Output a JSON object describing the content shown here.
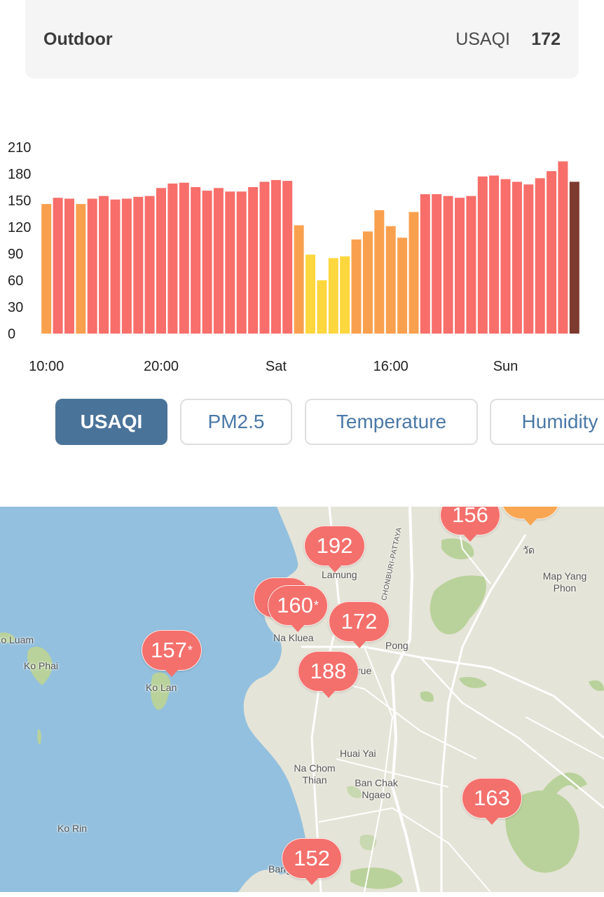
{
  "outdoor": {
    "label": "Outdoor",
    "unit": "USAQI",
    "value": "172"
  },
  "chart_data": {
    "type": "bar",
    "ylim": [
      0,
      210
    ],
    "yticks": [
      0,
      30,
      60,
      90,
      120,
      150,
      180,
      210
    ],
    "xticks": [
      {
        "label": "10:00",
        "index": 0
      },
      {
        "label": "20:00",
        "index": 10
      },
      {
        "label": "Sat",
        "index": 20
      },
      {
        "label": "16:00",
        "index": 30
      },
      {
        "label": "Sun",
        "index": 40
      }
    ],
    "values": [
      146,
      153,
      152,
      146,
      152,
      155,
      151,
      152,
      154,
      155,
      164,
      169,
      170,
      165,
      161,
      164,
      160,
      160,
      165,
      171,
      173,
      172,
      122,
      89,
      60,
      85,
      87,
      106,
      115,
      139,
      121,
      108,
      137,
      157,
      157,
      155,
      153,
      155,
      177,
      178,
      174,
      171,
      168,
      175,
      183,
      194,
      171
    ],
    "colors": {
      "unhealthy": "#f76e6a",
      "sensitive": "#f9a04e",
      "moderate": "#fed63e",
      "current": "#7e3a2f"
    }
  },
  "tabs": [
    {
      "label": "USAQI",
      "active": true
    },
    {
      "label": "PM2.5",
      "active": false
    },
    {
      "label": "Temperature",
      "active": false
    },
    {
      "label": "Humidity",
      "active": false
    }
  ],
  "map": {
    "places": [
      "Lamung",
      "Map Yang Phon",
      "Na Kluea",
      "Pong",
      "Ko Luam",
      "Ko Phai",
      "Ko Lan",
      "Huai Yai",
      "Na Chom Thian",
      "Ban Chak Ngaeo",
      "Ko Rin",
      "Bang",
      "CHONBURI-PATTAYA",
      "วัด",
      "rue"
    ],
    "markers": [
      {
        "value": "156",
        "star": false
      },
      {
        "value": "192",
        "star": false
      },
      {
        "value": "1",
        "star": false
      },
      {
        "value": "160",
        "star": true
      },
      {
        "value": "172",
        "star": false
      },
      {
        "value": "188",
        "star": false
      },
      {
        "value": "157",
        "star": true
      },
      {
        "value": "163",
        "star": false
      },
      {
        "value": "152",
        "star": false
      }
    ]
  }
}
